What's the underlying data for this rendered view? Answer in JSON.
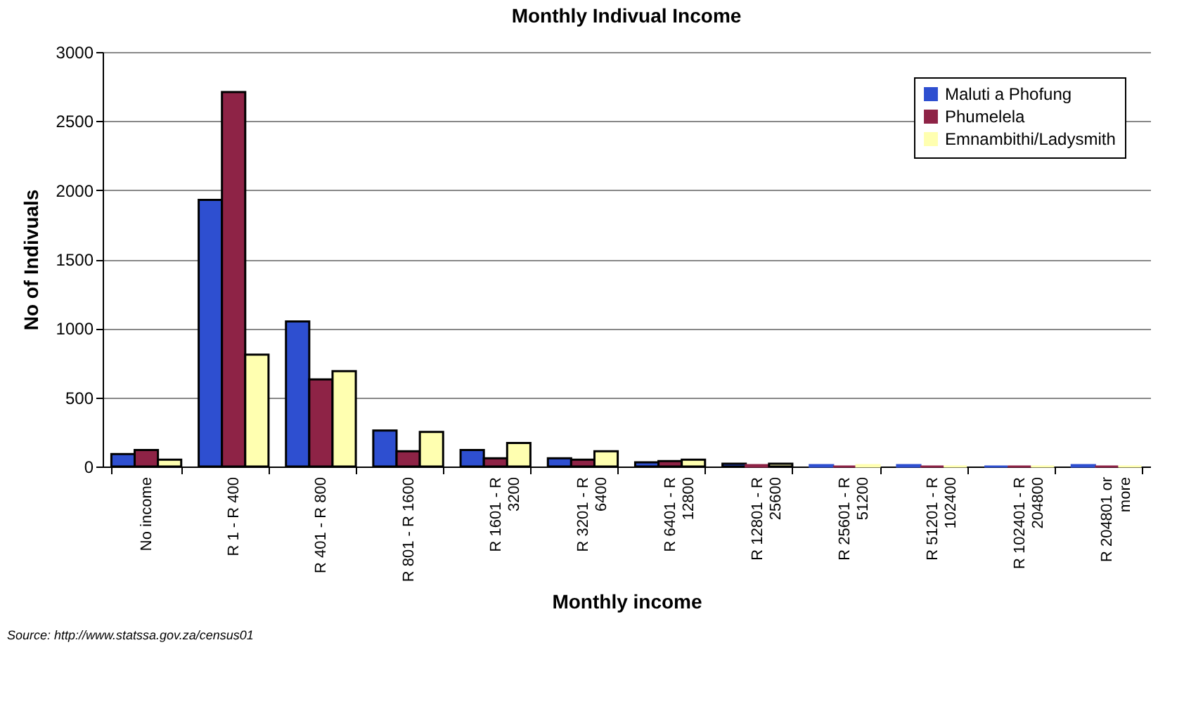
{
  "chart_data": {
    "type": "bar",
    "title": "Monthly Indivual Income",
    "xlabel": "Monthly income",
    "ylabel": "No of Indivuals",
    "categories": [
      "No income",
      "R 1 - R 400",
      "R 401 - R 800",
      "R 801 - R 1600",
      "R 1601 - R\n3200",
      "R 3201 - R\n6400",
      "R 6401 - R\n12800",
      "R 12801 - R\n25600",
      "R 25601 - R\n51200",
      "R 51201 - R\n102400",
      "R 102401 - R\n204800",
      "R 204801 or\nmore"
    ],
    "series": [
      {
        "name": "Maluti a Phofung",
        "color": "#2e4fd0",
        "values": [
          90,
          1930,
          1050,
          260,
          120,
          60,
          30,
          20,
          10,
          10,
          0,
          10
        ]
      },
      {
        "name": "Phumelela",
        "color": "#8e2346",
        "values": [
          120,
          2710,
          630,
          110,
          60,
          50,
          40,
          10,
          0,
          0,
          0,
          0
        ]
      },
      {
        "name": "Emnambithi/Ladysmith",
        "color": "#ffffb0",
        "values": [
          50,
          810,
          690,
          250,
          170,
          110,
          50,
          20,
          10,
          0,
          0,
          0
        ]
      }
    ],
    "ylim": [
      0,
      3000
    ],
    "yticks": [
      0,
      500,
      1000,
      1500,
      2000,
      2500,
      3000
    ],
    "grid": "y",
    "legend": "top right",
    "annotations": [
      "Source: http://www.statssa.gov.za/census01"
    ]
  }
}
